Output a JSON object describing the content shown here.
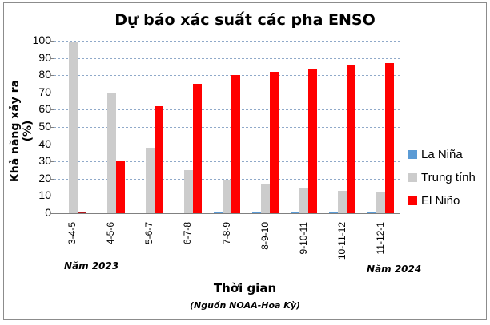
{
  "chart_data": {
    "type": "bar",
    "title": "Dự báo xác suất các pha ENSO",
    "xlabel": "Thời gian",
    "ylabel": "Khả năng xảy ra (%)",
    "source_note": "(Nguồn NOAA-Hoa Kỳ)",
    "ylim": [
      0,
      100
    ],
    "yticks": [
      0,
      10,
      20,
      30,
      40,
      50,
      60,
      70,
      80,
      90,
      100
    ],
    "grid": true,
    "legend_position": "right",
    "categories": [
      "3-4-5",
      "4-5-6",
      "5-6-7",
      "6-7-8",
      "7-8-9",
      "8-9-10",
      "9-10-11",
      "10-11-12",
      "11-12-1"
    ],
    "series": [
      {
        "name": "La Niña",
        "color": "#5b9bd5",
        "values": [
          0,
          0,
          0,
          0,
          1,
          1,
          1,
          1,
          1
        ]
      },
      {
        "name": "Trung tính",
        "color": "#cccccc",
        "values": [
          99,
          70,
          38,
          25,
          19,
          17,
          15,
          13,
          12
        ]
      },
      {
        "name": "El Niño",
        "color": "#ff0000",
        "values": [
          1,
          30,
          62,
          75,
          80,
          82,
          84,
          86,
          87
        ]
      }
    ],
    "annotations": [
      "Năm 2023",
      "Năm 2024"
    ]
  },
  "colors": {
    "la_nina": "#5b9bd5",
    "neutral": "#cccccc",
    "el_nino": "#ff0000",
    "el_nino_small": "#b0161b",
    "grid": "#8fa9c9"
  }
}
